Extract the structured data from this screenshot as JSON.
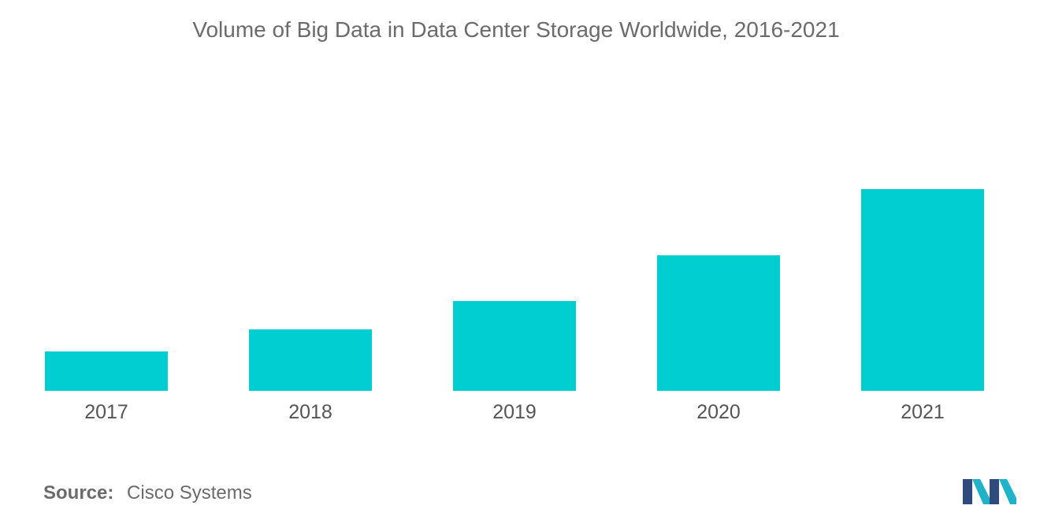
{
  "chart_data": {
    "type": "bar",
    "title": "Volume of Big Data in Data Center Storage Worldwide, 2016-2021",
    "categories": [
      "2017",
      "2018",
      "2019",
      "2020",
      "2021"
    ],
    "values": [
      25,
      39,
      57,
      86,
      128
    ],
    "ylim": [
      0,
      150
    ],
    "xlabel": "",
    "ylabel": "",
    "grid": false,
    "legend": "none",
    "bar_color": "#00ced1"
  },
  "footer": {
    "source_label": "Source:",
    "source_value": "Cisco Systems"
  },
  "logo": {
    "icon": "mordor-intelligence-logo",
    "colors": [
      "#2f4a7c",
      "#20b2c8"
    ]
  }
}
